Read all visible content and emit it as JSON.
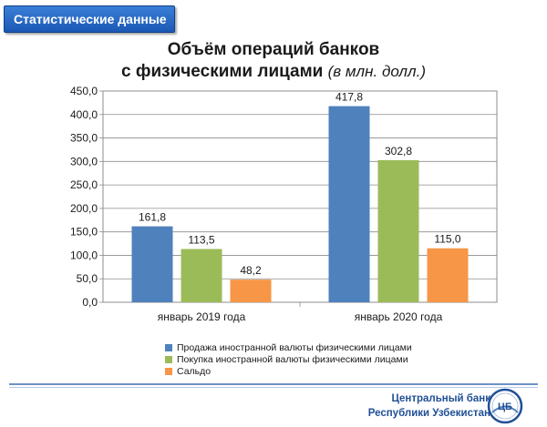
{
  "header": {
    "label": "Статистические данные"
  },
  "title": {
    "line1": "Объём операций банков",
    "line2_main": "с физическими лицами",
    "line2_unit": "(в млн. долл.)"
  },
  "chart_data": {
    "type": "bar",
    "title": "Объём операций банков с физическими лицами (в млн. долл.)",
    "categories": [
      "январь 2019 года",
      "январь 2020 года"
    ],
    "series": [
      {
        "name": "Продажа иностранной валюты физическими лицами",
        "values": [
          161.8,
          417.8
        ],
        "labels": [
          "161,8",
          "417,8"
        ],
        "color": "#4f81bd"
      },
      {
        "name": "Покупка иностранной валюты физическими лицами",
        "values": [
          113.5,
          302.8
        ],
        "labels": [
          "113,5",
          "302,8"
        ],
        "color": "#9bbb59"
      },
      {
        "name": "Сальдо",
        "values": [
          48.2,
          115.0
        ],
        "labels": [
          "48,2",
          "115,0"
        ],
        "color": "#f79646"
      }
    ],
    "ylim": [
      0,
      450
    ],
    "yticks": [
      0,
      50,
      100,
      150,
      200,
      250,
      300,
      350,
      400,
      450
    ],
    "ytick_labels": [
      "0,0",
      "50,0",
      "100,0",
      "150,0",
      "200,0",
      "250,0",
      "300,0",
      "350,0",
      "400,0",
      "450,0"
    ],
    "grid": true,
    "legend": "bottom",
    "xlabel": "",
    "ylabel": ""
  },
  "footer": {
    "line1": "Центральный банк",
    "line2": "Республики Узбекистан"
  },
  "logo": {
    "text": "ЦБ"
  }
}
